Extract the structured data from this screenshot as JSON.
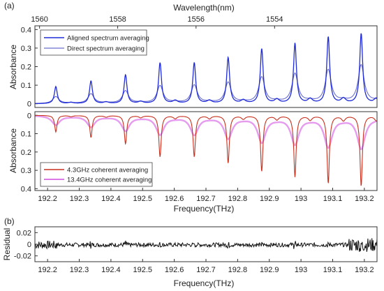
{
  "chart_data": [
    {
      "panel": "(a)",
      "type": "line",
      "top_xlabel": "Wavelength(nm)",
      "top_xticks": [
        1560,
        1558,
        1556,
        1554
      ],
      "ylabel": "Absorbance",
      "ylim": [
        -0.02,
        0.42
      ],
      "yticks": [
        0,
        0.1,
        0.2,
        0.3,
        0.4
      ],
      "ytick_labels": [
        "0",
        "0.1",
        "0.2",
        "0.3",
        "0.4"
      ],
      "legend_position": "top-left",
      "line_peaks": {
        "center": [
          192.226,
          192.337,
          192.446,
          192.555,
          192.663,
          192.77,
          192.876,
          192.981,
          193.086,
          193.19
        ],
        "width": 0.0055
      },
      "series": [
        {
          "name": "Aligned spectrum averaging",
          "color": "#1f2bd8",
          "peak_values": [
            0.092,
            0.122,
            0.155,
            0.22,
            0.22,
            0.248,
            0.295,
            0.325,
            0.36,
            0.378
          ]
        },
        {
          "name": "Direct spectrum averaging",
          "color": "#6b6fd0",
          "peak_values": [
            0.038,
            0.052,
            0.068,
            0.095,
            0.098,
            0.112,
            0.14,
            0.158,
            0.178,
            0.205
          ]
        }
      ]
    },
    {
      "type": "line",
      "ylabel": "Absorbance",
      "xlabel": "Frequency(THz)",
      "xlim": [
        192.16,
        193.24
      ],
      "xticks": [
        192.2,
        192.3,
        192.4,
        192.5,
        192.6,
        192.7,
        192.8,
        192.9,
        193,
        193.1,
        193.2
      ],
      "xtick_labels": [
        "192.2",
        "192.3",
        "192.4",
        "192.5",
        "192.6",
        "192.7",
        "192.8",
        "192.9",
        "193",
        "193.1",
        "193.2"
      ],
      "ylim": [
        -0.02,
        0.41
      ],
      "y_reversed": true,
      "yticks": [
        0,
        0.1,
        0.2,
        0.3,
        0.4
      ],
      "ytick_labels": [
        "0",
        "0.1",
        "0.2",
        "0.3",
        "0.4"
      ],
      "legend_position": "bottom-left",
      "series": [
        {
          "name": "4.3GHz coherent averaging",
          "color": "#c8301e",
          "peak_values": [
            0.09,
            0.12,
            0.155,
            0.225,
            0.225,
            0.26,
            0.305,
            0.335,
            0.37,
            0.385
          ]
        },
        {
          "name": "13.4GHz coherent averaging",
          "color": "#d24be0",
          "peak_values": [
            0.05,
            0.06,
            0.08,
            0.1,
            0.1,
            0.12,
            0.14,
            0.15,
            0.165,
            0.175
          ]
        }
      ]
    },
    {
      "panel": "(b)",
      "type": "line",
      "ylabel": "Residual",
      "xlabel": "Frequency(THz)",
      "xlim": [
        192.16,
        193.24
      ],
      "xticks": [
        192.2,
        192.3,
        192.4,
        192.5,
        192.6,
        192.7,
        192.8,
        192.9,
        193,
        193.1,
        193.2
      ],
      "xtick_labels": [
        "192.2",
        "192.3",
        "192.4",
        "192.5",
        "192.6",
        "192.7",
        "192.8",
        "192.9",
        "193",
        "193.1",
        "193.2"
      ],
      "ylim": [
        -0.03,
        0.03
      ],
      "yticks": [
        0.02,
        0,
        -0.02
      ],
      "ytick_labels": [
        "0.02",
        "0",
        "-0.02"
      ],
      "series": [
        {
          "color": "#111111"
        }
      ]
    }
  ]
}
